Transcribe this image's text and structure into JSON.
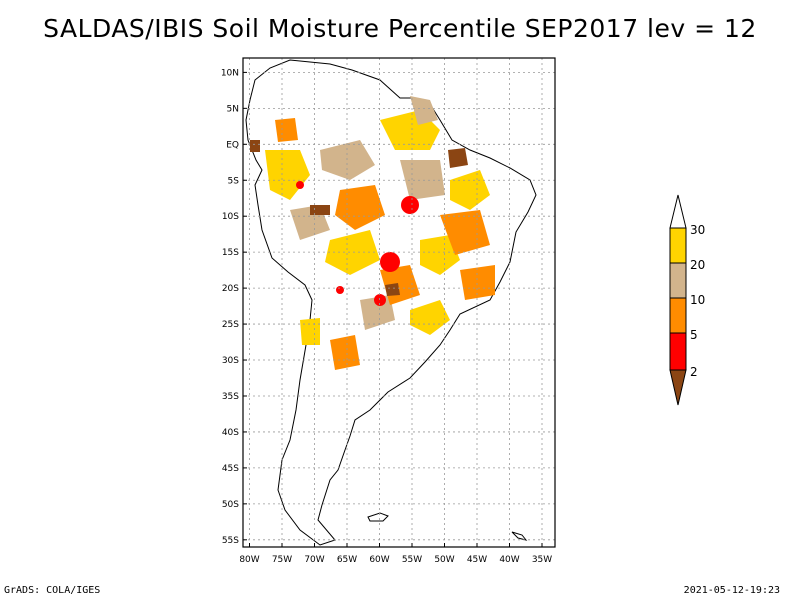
{
  "title": "SALDAS/IBIS Soil Moisture Percentile SEP2017 lev = 12",
  "footer": {
    "left": "GrADS: COLA/IGES",
    "right": "2021-05-12-19:23"
  },
  "map": {
    "lat_labels": [
      "10N",
      "5N",
      "EQ",
      "5S",
      "10S",
      "15S",
      "20S",
      "25S",
      "30S",
      "35S",
      "40S",
      "45S",
      "50S",
      "55S"
    ],
    "lon_labels": [
      "80W",
      "75W",
      "70W",
      "65W",
      "60W",
      "55W",
      "50W",
      "45W",
      "40W",
      "35W"
    ],
    "lat_values": [
      10,
      5,
      0,
      -5,
      -10,
      -15,
      -20,
      -25,
      -30,
      -35,
      -40,
      -45,
      -50,
      -55
    ],
    "lon_values": [
      -80,
      -75,
      -70,
      -65,
      -60,
      -55,
      -50,
      -45,
      -40,
      -35
    ],
    "extent": {
      "lon_min": -81,
      "lon_max": -33,
      "lat_min": -56,
      "lat_max": 12
    },
    "grid": true
  },
  "colorbar": {
    "labels": [
      "30",
      "20",
      "10",
      "5",
      "2"
    ],
    "colors": [
      "#ffffff",
      "#ffd400",
      "#d2b48c",
      "#ff8c00",
      "#ff0000",
      "#8b4513"
    ]
  }
}
